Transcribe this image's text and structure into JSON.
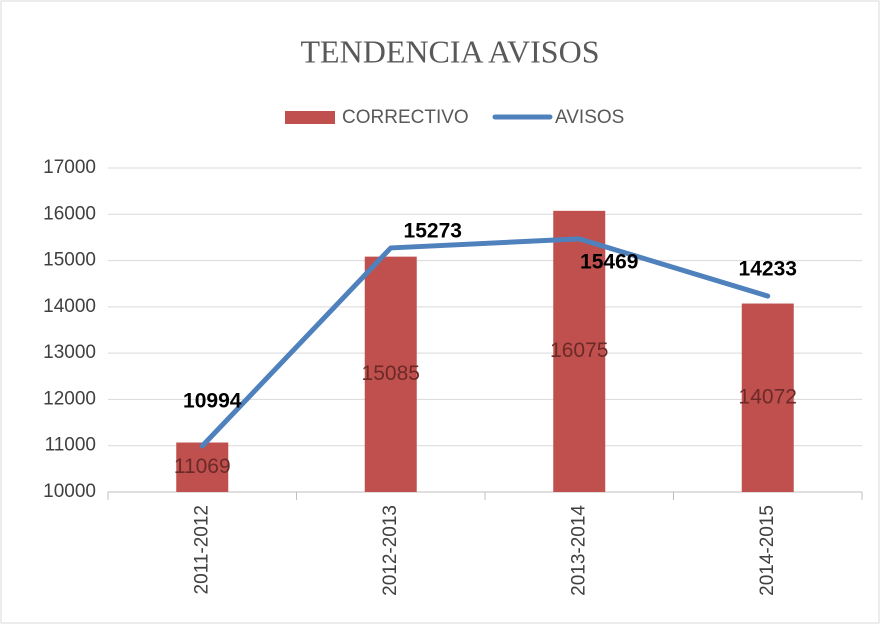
{
  "chart_data": {
    "type": "combo",
    "title": "TENDENCIA AVISOS",
    "categories": [
      "2011-2012",
      "2012-2013",
      "2013-2014",
      "2014-2015"
    ],
    "series": [
      {
        "name": "CORRECTIVO",
        "type": "bar",
        "color": "#c0504d",
        "label_color": "#6b2a28",
        "values": [
          11069,
          15085,
          16075,
          14072
        ]
      },
      {
        "name": "AVISOS",
        "type": "line",
        "color": "#4f81bd",
        "label_color": "#000000",
        "values": [
          10994,
          15273,
          15469,
          14233
        ]
      }
    ],
    "ylim": [
      10000,
      17000
    ],
    "yticks": [
      10000,
      11000,
      12000,
      13000,
      14000,
      15000,
      16000,
      17000
    ],
    "grid": true,
    "legend": "top"
  }
}
